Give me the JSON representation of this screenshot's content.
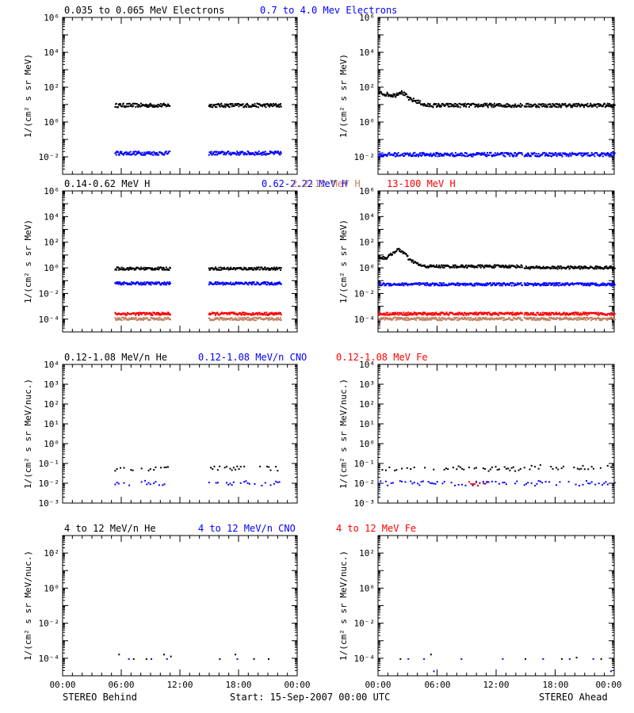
{
  "colors": {
    "black": "#000000",
    "blue": "#0000ff",
    "tan": "#c08060",
    "red": "#ff0000"
  },
  "footer": {
    "left": "STEREO Behind",
    "center": "Start: 15-Sep-2007 00:00 UTC",
    "right": "STEREO Ahead"
  },
  "x_ticks": [
    "00:00",
    "06:00",
    "12:00",
    "18:00",
    "00:00"
  ],
  "chart_data": [
    {
      "type": "scatter",
      "title_parts": [
        {
          "text": "0.035 to 0.065 MeV Electrons",
          "color": "#000000"
        },
        {
          "text": "0.7 to 4.0 Mev Electrons",
          "color": "#0000ff"
        }
      ],
      "ylabel": "1/(cm² s sr MeV)",
      "yscale": "log",
      "ylim": [
        0.001,
        1000000
      ],
      "y_ticks": [
        {
          "exp": -2,
          "label": "10⁻²"
        },
        {
          "exp": 0,
          "label": "10⁰"
        },
        {
          "exp": 2,
          "label": "10²"
        },
        {
          "exp": 4,
          "label": "10⁴"
        },
        {
          "exp": 6,
          "label": "10⁶"
        }
      ],
      "xlim_hours": [
        0,
        24
      ],
      "panels": [
        {
          "spacecraft": "STEREO Behind",
          "series": [
            {
              "color": "#000000",
              "segments": [
                [
                  5.3,
                  10.9,
                  10
                ],
                [
                  14.9,
                  22.3,
                  10
                ]
              ]
            },
            {
              "color": "#0000ff",
              "segments": [
                [
                  5.3,
                  10.9,
                  0.018
                ],
                [
                  14.9,
                  22.3,
                  0.018
                ]
              ]
            }
          ]
        },
        {
          "spacecraft": "STEREO Ahead",
          "series": [
            {
              "color": "#000000",
              "segments": [
                [
                  0,
                  14.6,
                  10
                ],
                [
                  14.8,
                  24,
                  10
                ]
              ],
              "peaks": [
                [
                  0.6,
                  25
                ],
                [
                  1.5,
                  40
                ],
                [
                  2.2,
                  60
                ],
                [
                  3.5,
                  20
                ]
              ]
            },
            {
              "color": "#0000ff",
              "segments": [
                [
                  0,
                  14.6,
                  0.015
                ],
                [
                  14.8,
                  24,
                  0.015
                ]
              ]
            }
          ]
        }
      ]
    },
    {
      "type": "scatter",
      "title_parts": [
        {
          "text": "0.14-0.62 MeV H",
          "color": "#000000"
        },
        {
          "text": "0.62-2.22 MeV H",
          "color": "#0000ff"
        },
        {
          "text": "2.2-12 MeV H",
          "color": "#c08060"
        },
        {
          "text": "13-100 MeV H",
          "color": "#ff0000"
        }
      ],
      "ylabel": "1/(cm² s sr MeV)",
      "yscale": "log",
      "ylim": [
        1e-05,
        1000000
      ],
      "y_ticks": [
        {
          "exp": -4,
          "label": "10⁻⁴"
        },
        {
          "exp": -2,
          "label": "10⁻²"
        },
        {
          "exp": 0,
          "label": "10⁰"
        },
        {
          "exp": 2,
          "label": "10²"
        },
        {
          "exp": 4,
          "label": "10⁴"
        },
        {
          "exp": 6,
          "label": "10⁶"
        }
      ],
      "xlim_hours": [
        0,
        24
      ],
      "panels": [
        {
          "spacecraft": "STEREO Behind",
          "series": [
            {
              "color": "#000000",
              "segments": [
                [
                  5.3,
                  11.0,
                  1
                ],
                [
                  14.9,
                  22.3,
                  1
                ]
              ]
            },
            {
              "color": "#0000ff",
              "segments": [
                [
                  5.3,
                  11.0,
                  0.07
                ],
                [
                  14.9,
                  22.3,
                  0.07
                ]
              ]
            },
            {
              "color": "#ff0000",
              "segments": [
                [
                  5.3,
                  11.0,
                  0.0003
                ],
                [
                  14.9,
                  22.3,
                  0.0003
                ]
              ]
            },
            {
              "color": "#c08060",
              "segments": [
                [
                  5.3,
                  11.0,
                  0.00012
                ],
                [
                  14.9,
                  22.3,
                  0.00012
                ]
              ]
            }
          ]
        },
        {
          "spacecraft": "STEREO Ahead",
          "series": [
            {
              "color": "#000000",
              "segments": [
                [
                  0,
                  14.6,
                  1.5
                ],
                [
                  14.8,
                  24,
                  1.2
                ]
              ],
              "peaks": [
                [
                  1.5,
                  15
                ],
                [
                  2.0,
                  30
                ],
                [
                  3.0,
                  5
                ]
              ]
            },
            {
              "color": "#0000ff",
              "segments": [
                [
                  0,
                  14.6,
                  0.06
                ],
                [
                  14.8,
                  24,
                  0.06
                ]
              ]
            },
            {
              "color": "#ff0000",
              "segments": [
                [
                  0,
                  14.6,
                  0.0003
                ],
                [
                  14.8,
                  24,
                  0.0003
                ]
              ]
            },
            {
              "color": "#c08060",
              "segments": [
                [
                  0,
                  14.6,
                  0.00012
                ],
                [
                  14.8,
                  24,
                  0.00012
                ]
              ]
            }
          ]
        }
      ]
    },
    {
      "type": "scatter",
      "title_parts": [
        {
          "text": "0.12-1.08 MeV/n He",
          "color": "#000000"
        },
        {
          "text": "0.12-1.08 MeV/n CNO",
          "color": "#0000ff"
        },
        {
          "text": "0.12-1.08 MeV Fe",
          "color": "#ff0000"
        }
      ],
      "ylabel": "1/(cm² s sr MeV/nuc.)",
      "yscale": "log",
      "ylim": [
        0.001,
        10000
      ],
      "y_ticks": [
        {
          "exp": -3,
          "label": "10⁻³"
        },
        {
          "exp": -2,
          "label": "10⁻²"
        },
        {
          "exp": -1,
          "label": "10⁻¹"
        },
        {
          "exp": 0,
          "label": "10⁰"
        },
        {
          "exp": 1,
          "label": "10¹"
        },
        {
          "exp": 2,
          "label": "10²"
        },
        {
          "exp": 3,
          "label": "10³"
        },
        {
          "exp": 4,
          "label": "10⁴"
        }
      ],
      "xlim_hours": [
        0,
        24
      ],
      "panels": [
        {
          "spacecraft": "STEREO Behind",
          "sparse": true,
          "series": [
            {
              "color": "#000000",
              "segments": [
                [
                  5.3,
                  10.9,
                  0.06
                ],
                [
                  14.9,
                  22.3,
                  0.06
                ]
              ]
            },
            {
              "color": "#0000ff",
              "segments": [
                [
                  5.3,
                  10.9,
                  0.011
                ],
                [
                  14.9,
                  22.3,
                  0.011
                ]
              ]
            }
          ]
        },
        {
          "spacecraft": "STEREO Ahead",
          "sparse": true,
          "series": [
            {
              "color": "#000000",
              "segments": [
                [
                  0,
                  14.6,
                  0.06
                ],
                [
                  14.8,
                  24,
                  0.07
                ]
              ]
            },
            {
              "color": "#0000ff",
              "segments": [
                [
                  0,
                  14.6,
                  0.011
                ],
                [
                  14.8,
                  24,
                  0.011
                ]
              ]
            },
            {
              "color": "#ff0000",
              "segments": [
                [
                  9,
                  11,
                  0.011
                ]
              ]
            }
          ]
        }
      ]
    },
    {
      "type": "scatter",
      "title_parts": [
        {
          "text": "4 to 12 MeV/n He",
          "color": "#000000"
        },
        {
          "text": "4 to 12 MeV/n CNO",
          "color": "#0000ff"
        },
        {
          "text": "4 to 12 MeV Fe",
          "color": "#ff0000"
        }
      ],
      "ylabel": "1/(cm² s sr MeV/nuc.)",
      "yscale": "log",
      "ylim": [
        1e-05,
        1000
      ],
      "y_ticks": [
        {
          "exp": -4,
          "label": "10⁻⁴"
        },
        {
          "exp": -2,
          "label": "10⁻²"
        },
        {
          "exp": 0,
          "label": "10⁰"
        },
        {
          "exp": 2,
          "label": "10²"
        }
      ],
      "xlim_hours": [
        0,
        24
      ],
      "panels": [
        {
          "spacecraft": "STEREO Behind",
          "sparse": true,
          "series": [
            {
              "color": "#000000",
              "points": [
                [
                  5.7,
                  0.00018
                ],
                [
                  7.2,
                  0.0001
                ],
                [
                  8.5,
                  0.0001
                ],
                [
                  10.3,
                  0.00018
                ],
                [
                  11.0,
                  0.00014
                ],
                [
                  17.6,
                  0.00018
                ],
                [
                  16.0,
                  0.0001
                ],
                [
                  19.5,
                  0.0001
                ],
                [
                  21.0,
                  0.0001
                ]
              ]
            },
            {
              "color": "#0000ff",
              "points": [
                [
                  6.7,
                  0.0001
                ],
                [
                  9.0,
                  0.0001
                ],
                [
                  10.6,
                  0.0001
                ],
                [
                  17.8,
                  0.0001
                ]
              ]
            }
          ]
        },
        {
          "spacecraft": "STEREO Ahead",
          "sparse": true,
          "series": [
            {
              "color": "#000000",
              "points": [
                [
                  2.2,
                  0.0001
                ],
                [
                  5.3,
                  0.00018
                ],
                [
                  14.9,
                  0.0001
                ],
                [
                  18.6,
                  0.0001
                ],
                [
                  20.1,
                  0.00012
                ],
                [
                  22.6,
                  0.0001
                ]
              ]
            },
            {
              "color": "#0000ff",
              "points": [
                [
                  3.0,
                  0.0001
                ],
                [
                  4.6,
                  0.0001
                ],
                [
                  5.6,
                  2e-05
                ],
                [
                  8.4,
                  0.0001
                ],
                [
                  12.6,
                  0.0001
                ],
                [
                  16.7,
                  0.0001
                ],
                [
                  19.4,
                  0.0001
                ],
                [
                  21.8,
                  0.0001
                ],
                [
                  23.6,
                  2e-05
                ]
              ]
            }
          ]
        }
      ]
    }
  ]
}
